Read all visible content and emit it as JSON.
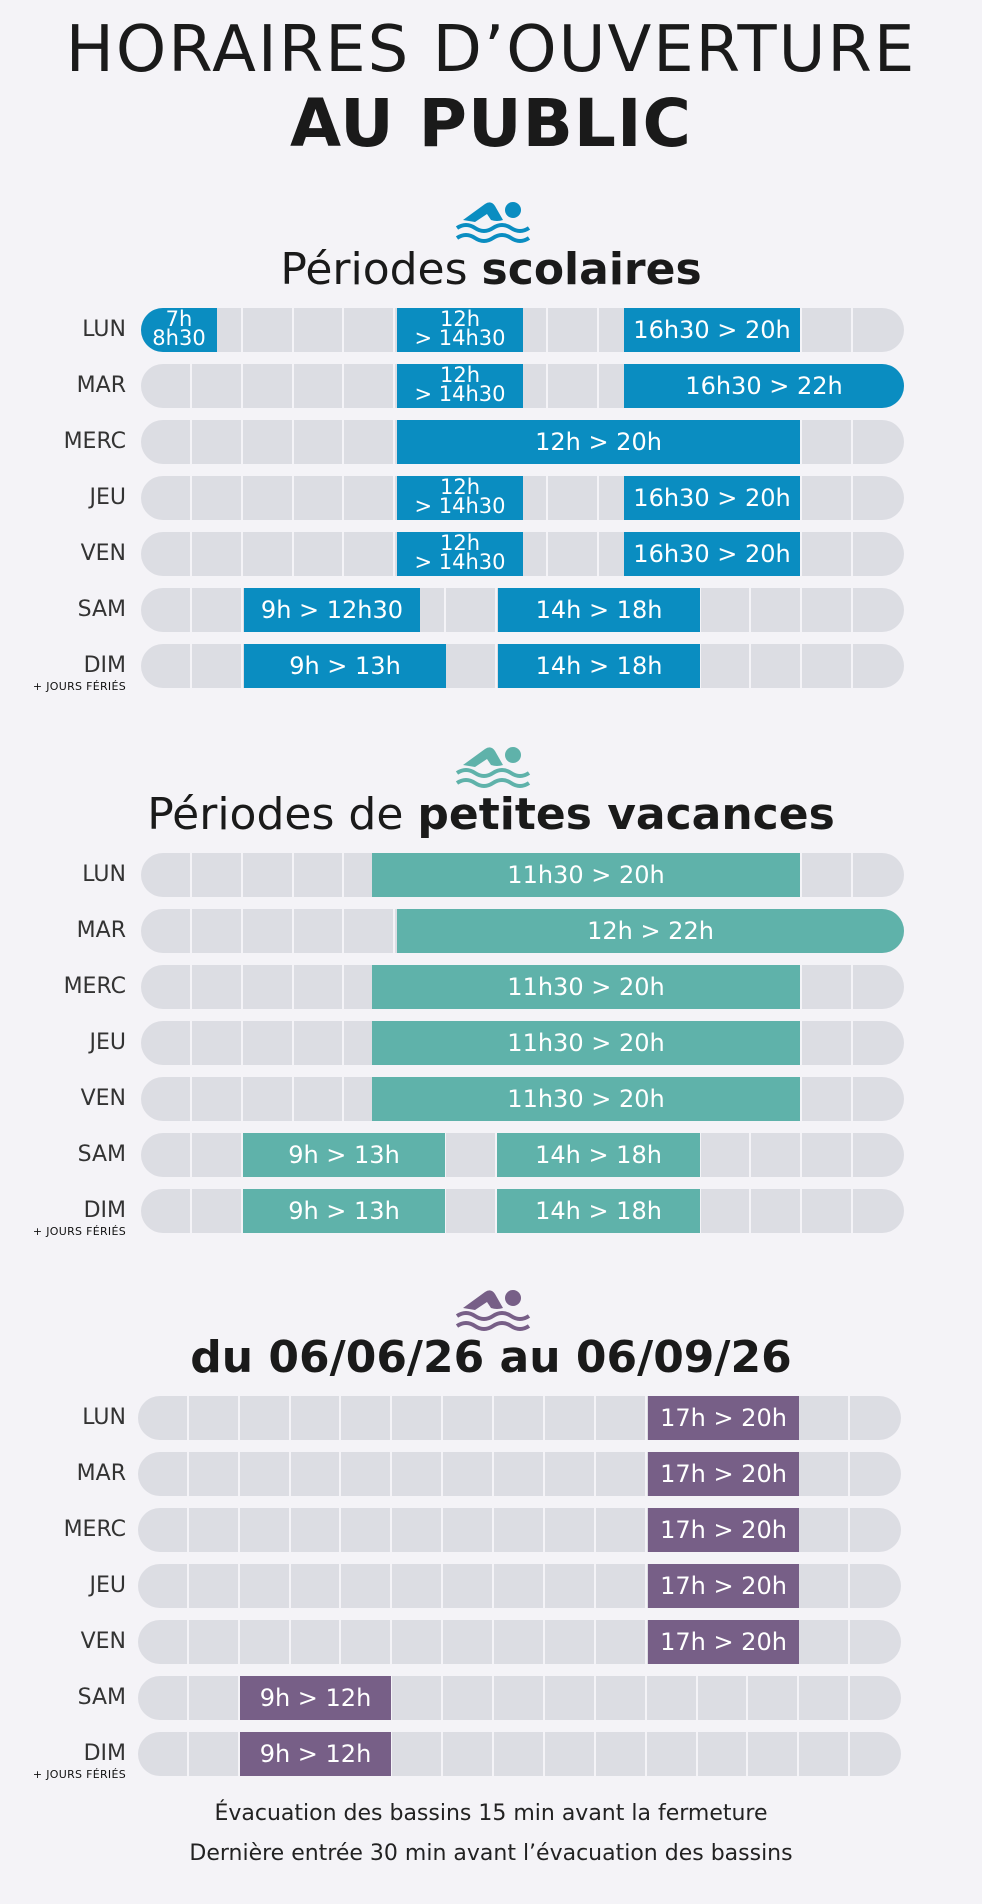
{
  "header": {
    "line1": "HORAIRES D’OUVERTURE",
    "line2": "AU PUBLIC"
  },
  "sections": [
    {
      "title_regular": "Périodes ",
      "title_bold": "scolaires",
      "icon": "swimmer-icon",
      "color": "#0a8dc1",
      "rows": [
        {
          "day": "LUN",
          "slots": [
            "7h 8h30",
            "12h > 14h30",
            "16h30 > 20h"
          ]
        },
        {
          "day": "MAR",
          "slots": [
            "12h > 14h30",
            "16h30 > 22h"
          ]
        },
        {
          "day": "MERC",
          "slots": [
            "12h > 20h"
          ]
        },
        {
          "day": "JEU",
          "slots": [
            "12h > 14h30",
            "16h30 > 20h"
          ]
        },
        {
          "day": "VEN",
          "slots": [
            "12h > 14h30",
            "16h30 > 20h"
          ]
        },
        {
          "day": "SAM",
          "slots": [
            "9h > 12h30",
            "14h > 18h"
          ]
        },
        {
          "day": "DIM",
          "note": "+ JOURS FÉRIÉS",
          "slots": [
            "9h > 13h",
            "14h > 18h"
          ]
        }
      ]
    },
    {
      "title_regular": "Périodes de ",
      "title_bold": "petites vacances",
      "icon": "swimmer-icon",
      "color": "#5fb2aa",
      "rows": [
        {
          "day": "LUN",
          "slots": [
            "11h30 > 20h"
          ]
        },
        {
          "day": "MAR",
          "slots": [
            "12h > 22h"
          ]
        },
        {
          "day": "MERC",
          "slots": [
            "11h30 > 20h"
          ]
        },
        {
          "day": "JEU",
          "slots": [
            "11h30 > 20h"
          ]
        },
        {
          "day": "VEN",
          "slots": [
            "11h30 > 20h"
          ]
        },
        {
          "day": "SAM",
          "slots": [
            "9h > 13h",
            "14h > 18h"
          ]
        },
        {
          "day": "DIM",
          "note": "+ JOURS FÉRIÉS",
          "slots": [
            "9h > 13h",
            "14h > 18h"
          ]
        }
      ]
    },
    {
      "title_regular": "",
      "title_bold": "du 06/06/26 au 06/09/26",
      "icon": "swimmer-icon",
      "color": "#775f87",
      "rows": [
        {
          "day": "LUN",
          "slots": [
            "17h > 20h"
          ]
        },
        {
          "day": "MAR",
          "slots": [
            "17h > 20h"
          ]
        },
        {
          "day": "MERC",
          "slots": [
            "17h > 20h"
          ]
        },
        {
          "day": "JEU",
          "slots": [
            "17h > 20h"
          ]
        },
        {
          "day": "VEN",
          "slots": [
            "17h > 20h"
          ]
        },
        {
          "day": "SAM",
          "slots": [
            "9h > 12h"
          ]
        },
        {
          "day": "DIM",
          "note": "+ JOURS FÉRIÉS",
          "slots": [
            "9h > 12h"
          ]
        }
      ]
    }
  ],
  "footer": {
    "line1": "Évacuation des bassins 15 min avant la fermeture",
    "line2": "Dernière entrée 30 min avant l’évacuation des bassins"
  }
}
